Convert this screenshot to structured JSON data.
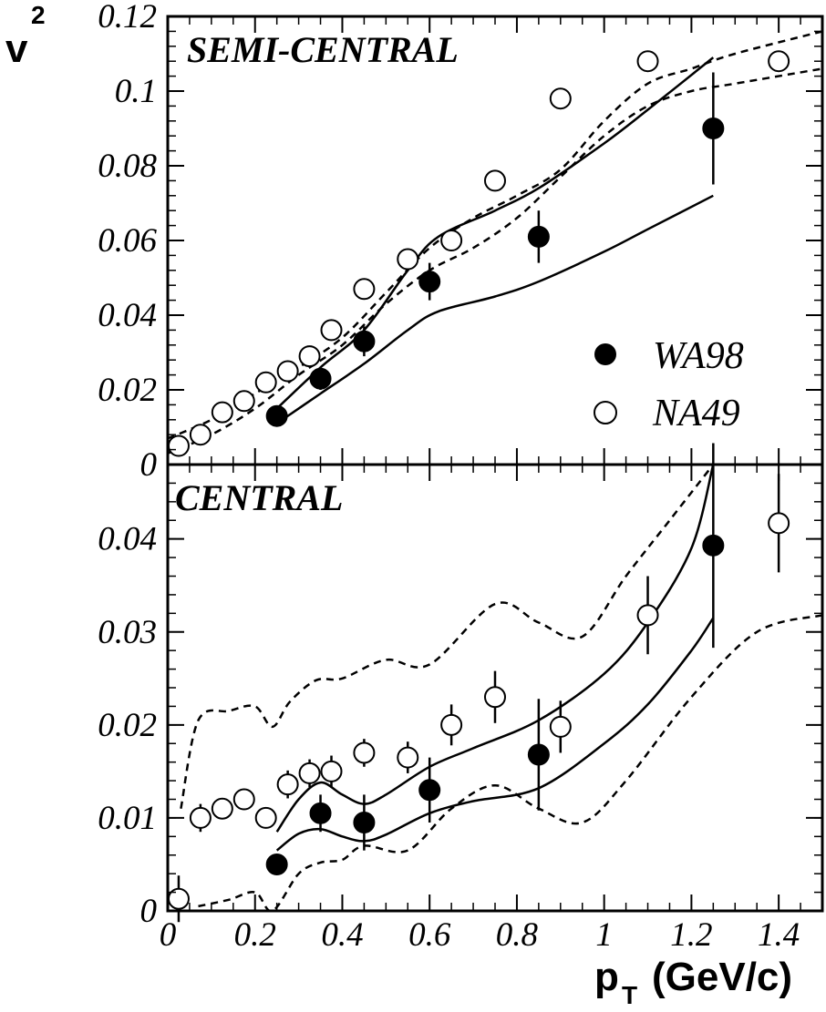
{
  "chart_data": [
    {
      "type": "scatter",
      "panel": "top",
      "title": "SEMI-CENTRAL",
      "ylabel": "v",
      "ylabel_sub": "2",
      "xlim": [
        0,
        1.5
      ],
      "ylim": [
        0,
        0.12
      ],
      "yticks": [
        0,
        0.02,
        0.04,
        0.06,
        0.08,
        0.1,
        0.12
      ],
      "ytick_labels": [
        "0",
        "0.02",
        "0.04",
        "0.06",
        "0.08",
        "0.1",
        "0.12"
      ],
      "legend_position": "right",
      "series": [
        {
          "name": "WA98",
          "marker": "filled-circle",
          "x": [
            0.25,
            0.35,
            0.45,
            0.6,
            0.85,
            1.25
          ],
          "y": [
            0.013,
            0.023,
            0.033,
            0.049,
            0.061,
            0.09
          ],
          "err": [
            0.002,
            0.003,
            0.004,
            0.005,
            0.007,
            0.015
          ]
        },
        {
          "name": "NA49",
          "marker": "open-circle",
          "x": [
            0.025,
            0.075,
            0.125,
            0.175,
            0.225,
            0.275,
            0.325,
            0.375,
            0.45,
            0.55,
            0.65,
            0.75,
            0.9,
            1.1,
            1.4
          ],
          "y": [
            0.005,
            0.008,
            0.014,
            0.017,
            0.022,
            0.025,
            0.029,
            0.036,
            0.047,
            0.055,
            0.06,
            0.076,
            0.098,
            0.108,
            0.108
          ],
          "err": [
            0,
            0,
            0,
            0,
            0,
            0,
            0,
            0.002,
            0,
            0,
            0,
            0,
            0,
            0,
            0
          ]
        }
      ],
      "bands": [
        {
          "style": "solid",
          "x": [
            0.25,
            0.35,
            0.45,
            0.55,
            0.62,
            0.75,
            0.85,
            1.0,
            1.1,
            1.25
          ],
          "y": [
            0.015,
            0.026,
            0.036,
            0.052,
            0.061,
            0.068,
            0.074,
            0.086,
            0.095,
            0.109
          ]
        },
        {
          "style": "solid",
          "x": [
            0.25,
            0.35,
            0.45,
            0.55,
            0.62,
            0.75,
            0.85,
            1.0,
            1.1,
            1.25
          ],
          "y": [
            0.011,
            0.019,
            0.027,
            0.036,
            0.041,
            0.045,
            0.049,
            0.057,
            0.063,
            0.072
          ]
        },
        {
          "style": "dashed",
          "x": [
            0.0,
            0.1,
            0.2,
            0.3,
            0.4,
            0.5,
            0.6,
            0.7,
            0.8,
            0.9,
            1.0,
            1.1,
            1.2,
            1.3,
            1.5
          ],
          "y": [
            0.007,
            0.012,
            0.019,
            0.026,
            0.034,
            0.046,
            0.058,
            0.066,
            0.072,
            0.079,
            0.092,
            0.102,
            0.106,
            0.11,
            0.116
          ]
        },
        {
          "style": "dashed",
          "x": [
            0.0,
            0.1,
            0.2,
            0.3,
            0.4,
            0.5,
            0.6,
            0.7,
            0.8,
            0.9,
            1.0,
            1.1,
            1.2,
            1.3,
            1.5
          ],
          "y": [
            0.003,
            0.008,
            0.015,
            0.024,
            0.032,
            0.043,
            0.052,
            0.058,
            0.066,
            0.077,
            0.088,
            0.096,
            0.1,
            0.102,
            0.106
          ]
        }
      ]
    },
    {
      "type": "scatter",
      "panel": "bottom",
      "title": "CENTRAL",
      "xlabel": "p",
      "xlabel_sub": "T",
      "xlabel_unit": "(GeV/c)",
      "xlim": [
        0,
        1.5
      ],
      "ylim": [
        0,
        0.048
      ],
      "xticks": [
        0,
        0.2,
        0.4,
        0.6,
        0.8,
        1,
        1.2,
        1.4
      ],
      "xtick_labels": [
        "0",
        "0.2",
        "0.4",
        "0.6",
        "0.8",
        "1",
        "1.2",
        "1.4"
      ],
      "yticks": [
        0,
        0.01,
        0.02,
        0.03,
        0.04
      ],
      "ytick_labels": [
        "0",
        "0.01",
        "0.02",
        "0.03",
        "0.04"
      ],
      "series": [
        {
          "name": "WA98",
          "marker": "filled-circle",
          "x": [
            0.25,
            0.35,
            0.45,
            0.6,
            0.85,
            1.25
          ],
          "y": [
            0.005,
            0.0105,
            0.0095,
            0.013,
            0.0168,
            0.0393
          ],
          "err": [
            0.0005,
            0.002,
            0.003,
            0.0035,
            0.006,
            0.011
          ]
        },
        {
          "name": "NA49",
          "marker": "open-circle",
          "x": [
            0.025,
            0.075,
            0.125,
            0.175,
            0.225,
            0.275,
            0.325,
            0.375,
            0.45,
            0.55,
            0.65,
            0.75,
            0.9,
            1.1,
            1.4
          ],
          "y": [
            0.0013,
            0.01,
            0.011,
            0.012,
            0.01,
            0.0136,
            0.0148,
            0.015,
            0.017,
            0.0165,
            0.02,
            0.023,
            0.0198,
            0.0318,
            0.0417
          ],
          "err": [
            0.0025,
            0.0015,
            0.001,
            0.001,
            0.001,
            0.0015,
            0.0015,
            0.0017,
            0.0015,
            0.0017,
            0.0022,
            0.0028,
            0.0028,
            0.0042,
            0.0053
          ]
        }
      ],
      "bands": [
        {
          "style": "solid",
          "x": [
            0.25,
            0.3,
            0.35,
            0.4,
            0.45,
            0.5,
            0.6,
            0.7,
            0.85,
            1.0,
            1.1,
            1.2,
            1.25
          ],
          "y": [
            0.0085,
            0.012,
            0.0138,
            0.0125,
            0.0115,
            0.0125,
            0.0155,
            0.0175,
            0.0205,
            0.0255,
            0.031,
            0.039,
            0.048
          ]
        },
        {
          "style": "solid",
          "x": [
            0.25,
            0.3,
            0.35,
            0.4,
            0.45,
            0.5,
            0.6,
            0.7,
            0.85,
            1.0,
            1.1,
            1.2,
            1.25
          ],
          "y": [
            0.0065,
            0.0083,
            0.0088,
            0.008,
            0.0075,
            0.0082,
            0.0105,
            0.0118,
            0.0132,
            0.018,
            0.0222,
            0.028,
            0.0315
          ]
        },
        {
          "style": "dashed",
          "x": [
            0.03,
            0.07,
            0.14,
            0.2,
            0.24,
            0.28,
            0.34,
            0.4,
            0.5,
            0.6,
            0.75,
            0.85,
            0.95,
            1.05,
            1.15,
            1.25
          ],
          "y": [
            0.011,
            0.0205,
            0.0215,
            0.022,
            0.0198,
            0.0225,
            0.0248,
            0.025,
            0.027,
            0.0265,
            0.033,
            0.031,
            0.0295,
            0.036,
            0.042,
            0.048
          ]
        },
        {
          "style": "dashed",
          "x": [
            0.07,
            0.14,
            0.2,
            0.24,
            0.3,
            0.35,
            0.4,
            0.45,
            0.55,
            0.65,
            0.75,
            0.85,
            0.95,
            1.05,
            1.2,
            1.35,
            1.5
          ],
          "y": [
            0.0005,
            0.0012,
            0.002,
            0.0,
            0.004,
            0.0052,
            0.0055,
            0.007,
            0.0065,
            0.011,
            0.0135,
            0.011,
            0.0095,
            0.014,
            0.023,
            0.03,
            0.0318
          ]
        }
      ]
    }
  ]
}
